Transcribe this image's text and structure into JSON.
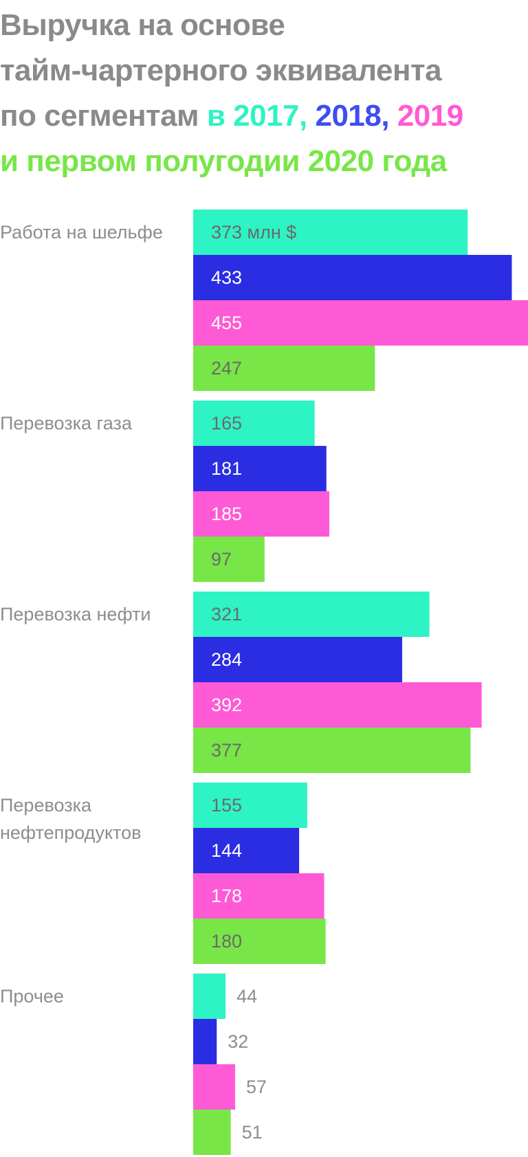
{
  "title": {
    "line1": "Выручка на основе",
    "line2": "тайм-чартерного эквивалента",
    "line3_prefix": "по сегментам ",
    "line3_in": "в ",
    "y2017": "2017,",
    "y2018": "2018",
    "comma": ",",
    "y2019": "2019",
    "line4": "и первом полугодии 2020 года"
  },
  "colors": {
    "title_gray": "#8a8a8a",
    "s2017": "#2ef3c4",
    "s2018": "#2b2de3",
    "s2018_title": "#3d4ef0",
    "s2019": "#ff5ad5",
    "s2020": "#78e647",
    "label_gray": "#8d8d8d",
    "value_dark": "#6a6a6a",
    "value_light": "#ffffff"
  },
  "chart_data": {
    "type": "bar",
    "orientation": "horizontal",
    "unit_suffix": " млн $",
    "categories": [
      "Работа на шельфе",
      "Перевозка газа",
      "Перевозка нефти",
      "Перевозка нефтепродуктов",
      "Прочее"
    ],
    "series": [
      {
        "name": "2017",
        "values": [
          373,
          165,
          321,
          155,
          44
        ]
      },
      {
        "name": "2018",
        "values": [
          433,
          181,
          284,
          144,
          32
        ]
      },
      {
        "name": "2019",
        "values": [
          455,
          185,
          392,
          178,
          57
        ]
      },
      {
        "name": "2020",
        "values": [
          247,
          97,
          377,
          180,
          51
        ]
      }
    ],
    "xlim": [
      0,
      455
    ],
    "grid": false,
    "legend": "in title"
  }
}
